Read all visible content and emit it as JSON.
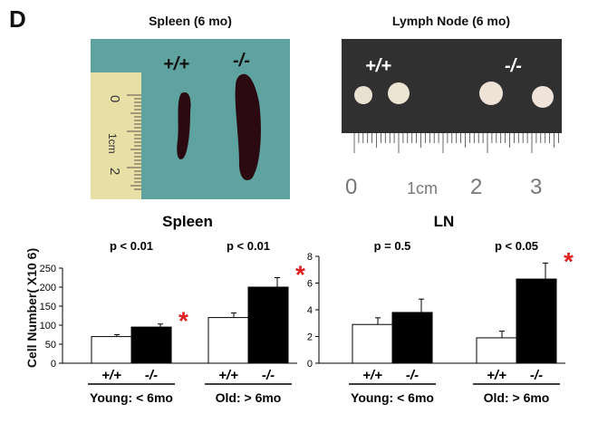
{
  "panel_letter": "D",
  "photos": {
    "spleen": {
      "title": "Spleen (6 mo)",
      "genotypes": [
        "+/+",
        "-/-"
      ],
      "ruler_labels": [
        "0",
        "1cm",
        "2"
      ]
    },
    "lymph_node": {
      "title": "Lymph Node (6 mo)",
      "genotypes": [
        "+/+",
        "-/-"
      ],
      "ruler_labels": [
        "0",
        "1cm",
        "2",
        "3"
      ]
    }
  },
  "y_axis_label": "Cell Number( X10 6)",
  "group_labels": [
    "Young: < 6mo",
    "Old: > 6mo"
  ],
  "genotype_labels": [
    "+/+",
    "-/-"
  ],
  "colors": {
    "wild_type": "#ffffff",
    "knockout": "#000000",
    "asterisk": "#e02020",
    "photo_bg_spleen": "#5fa3a0",
    "photo_bg_ln": "#2f302f"
  },
  "chart_data": [
    {
      "type": "bar",
      "title": "Spleen",
      "categories": [
        "+/+",
        "-/-",
        "+/+",
        "-/-"
      ],
      "groups": [
        "Young: < 6mo",
        "Old: > 6mo"
      ],
      "values": [
        70,
        95,
        120,
        200
      ],
      "errors": [
        5,
        8,
        12,
        25
      ],
      "ylim": [
        0,
        250
      ],
      "yticks": [
        0,
        50,
        100,
        150,
        200,
        250
      ],
      "pvalues": [
        "p < 0.01",
        "p < 0.01"
      ],
      "significant": [
        true,
        true
      ]
    },
    {
      "type": "bar",
      "title": "LN",
      "categories": [
        "+/+",
        "-/-",
        "+/+",
        "-/-"
      ],
      "groups": [
        "Young: < 6mo",
        "Old: > 6mo"
      ],
      "values": [
        2.9,
        3.8,
        1.9,
        6.3
      ],
      "errors": [
        0.5,
        1.0,
        0.5,
        1.2
      ],
      "ylim": [
        0,
        8
      ],
      "yticks": [
        0,
        2,
        4,
        6,
        8
      ],
      "pvalues": [
        "p = 0.5",
        "p < 0.05"
      ],
      "significant": [
        false,
        true
      ]
    }
  ]
}
